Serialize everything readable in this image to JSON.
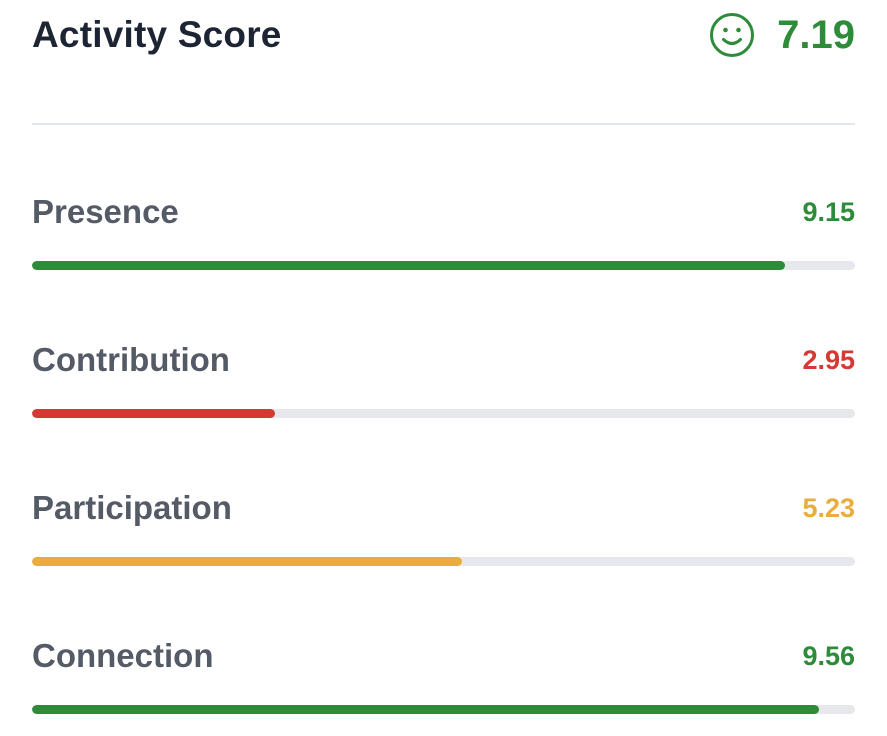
{
  "header": {
    "title": "Activity Score",
    "overall_icon": "smiley-face-icon",
    "overall_value": "7.19",
    "overall_color": "#2e8b3a"
  },
  "metrics": [
    {
      "label": "Presence",
      "value": "9.15",
      "score": 9.15,
      "max": 10,
      "color": "#2e8b3a"
    },
    {
      "label": "Contribution",
      "value": "2.95",
      "score": 2.95,
      "max": 10,
      "color": "#d23a33"
    },
    {
      "label": "Participation",
      "value": "5.23",
      "score": 5.23,
      "max": 10,
      "color": "#e9ad3c"
    },
    {
      "label": "Connection",
      "value": "9.56",
      "score": 9.56,
      "max": 10,
      "color": "#2e8b3a"
    }
  ],
  "colors": {
    "title_text": "#1d2433",
    "label_text": "#555b66",
    "track": "#e6e8ec",
    "divider": "#e3e6ea"
  }
}
